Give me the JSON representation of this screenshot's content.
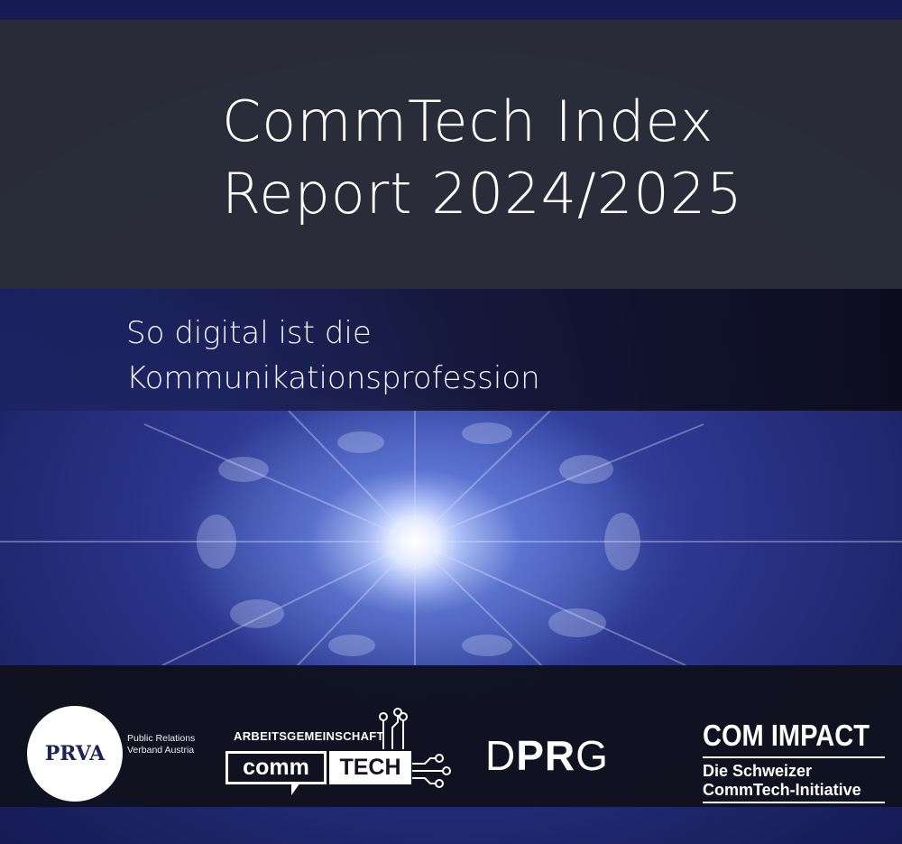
{
  "title": {
    "line1": "CommTech Index",
    "line2": "Report 2024/2025"
  },
  "subtitle": {
    "line1": "So digital ist die",
    "line2": "Kommunikationsprofession"
  },
  "logos": {
    "prva": {
      "mark": "PRVA",
      "caption_line1": "Public Relations",
      "caption_line2": "Verband Austria"
    },
    "commtech": {
      "top": "ARBEITSGEMEINSCHAFT",
      "left": "comm",
      "right": "TECH"
    },
    "dprg": {
      "letter_d": "D",
      "letters_pr": "PR",
      "letter_g": "G"
    },
    "comimpact": {
      "title": "COM IMPACT",
      "line1": "Die Schweizer",
      "line2": "CommTech-Initiative"
    }
  },
  "colors": {
    "title_band": "#2a2c38",
    "logo_band": "#10121e",
    "background": "#26307f",
    "text": "#ffffff"
  }
}
